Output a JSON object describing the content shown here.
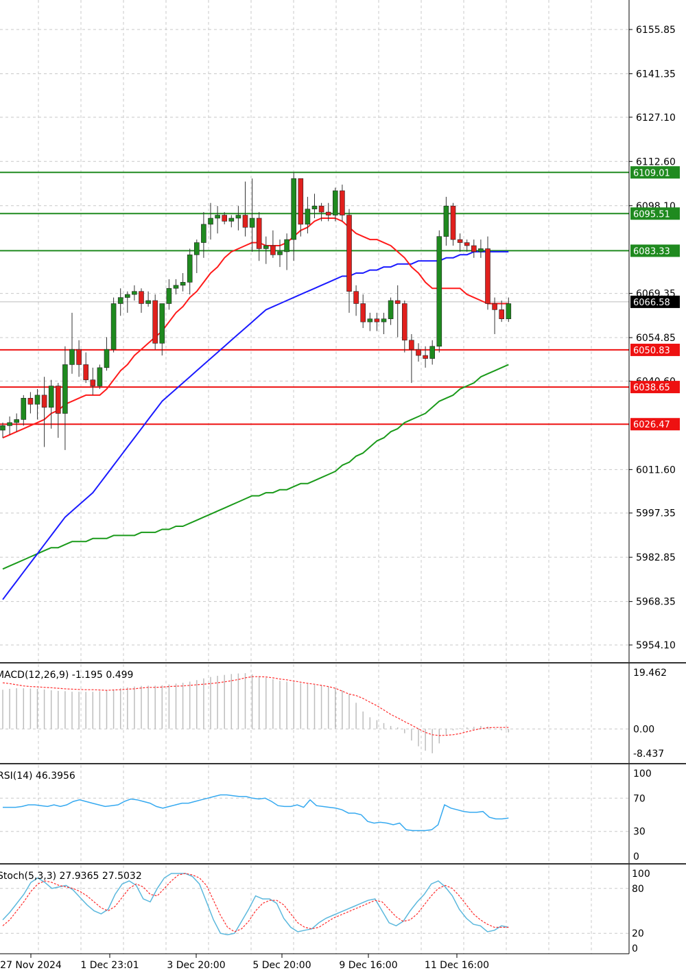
{
  "colors": {
    "bull": "#1f8a1f",
    "bear": "#e0201d",
    "ma_fast": "#ff1a1a",
    "ma_mid": "#1a1aff",
    "ma_slow": "#1a9a1a",
    "support": "#ee1111",
    "resistance": "#1f8a1f",
    "grid": "#c8c8c8",
    "macd_hist": "#bdbdbd",
    "macd_signal": "#ff2a2a",
    "rsi": "#35a9f0",
    "stoch_main": "#5bb8dd",
    "stoch_signal": "#ff2a2a"
  },
  "chart_data": [
    {
      "type": "candlestick",
      "panel": "price",
      "y_ticks": [
        "6155.85",
        "6141.35",
        "6127.10",
        "6112.60",
        "6098.10",
        "6069.35",
        "6054.85",
        "6040.60",
        "6011.60",
        "5997.35",
        "5982.85",
        "5968.35",
        "5954.10"
      ],
      "ylim": [
        5950,
        6168
      ],
      "x_tick_labels": [
        "27 Nov 2024",
        "1 Dec 23:01",
        "3 Dec 20:00",
        "5 Dec 20:00",
        "9 Dec 16:00",
        "11 Dec 16:00"
      ],
      "candles": [
        {
          "o": 6024.5,
          "h": 6027,
          "l": 6022,
          "c": 6026
        },
        {
          "o": 6026,
          "h": 6029,
          "l": 6023,
          "c": 6027
        },
        {
          "o": 6027,
          "h": 6030,
          "l": 6024,
          "c": 6028
        },
        {
          "o": 6028,
          "h": 6036,
          "l": 6026,
          "c": 6035
        },
        {
          "o": 6035,
          "h": 6037,
          "l": 6030,
          "c": 6033
        },
        {
          "o": 6033,
          "h": 6038,
          "l": 6028,
          "c": 6036
        },
        {
          "o": 6036,
          "h": 6042,
          "l": 6019,
          "c": 6032
        },
        {
          "o": 6032,
          "h": 6041,
          "l": 6025,
          "c": 6039
        },
        {
          "o": 6039,
          "h": 6040,
          "l": 6022,
          "c": 6030
        },
        {
          "o": 6030,
          "h": 6052,
          "l": 6018,
          "c": 6046
        },
        {
          "o": 6046,
          "h": 6063,
          "l": 6043,
          "c": 6051
        },
        {
          "o": 6051,
          "h": 6054,
          "l": 6042,
          "c": 6046
        },
        {
          "o": 6046,
          "h": 6050,
          "l": 6040,
          "c": 6041
        },
        {
          "o": 6041,
          "h": 6045,
          "l": 6036,
          "c": 6039
        },
        {
          "o": 6039,
          "h": 6046,
          "l": 6038,
          "c": 6045
        },
        {
          "o": 6045,
          "h": 6055,
          "l": 6044,
          "c": 6051
        },
        {
          "o": 6051,
          "h": 6068,
          "l": 6050,
          "c": 6066
        },
        {
          "o": 6066,
          "h": 6071,
          "l": 6062,
          "c": 6068
        },
        {
          "o": 6068,
          "h": 6070,
          "l": 6063,
          "c": 6069
        },
        {
          "o": 6069,
          "h": 6072,
          "l": 6067,
          "c": 6070
        },
        {
          "o": 6070,
          "h": 6071,
          "l": 6063,
          "c": 6066
        },
        {
          "o": 6066,
          "h": 6070,
          "l": 6065,
          "c": 6067
        },
        {
          "o": 6067,
          "h": 6069,
          "l": 6051,
          "c": 6053
        },
        {
          "o": 6053,
          "h": 6064,
          "l": 6049,
          "c": 6066
        },
        {
          "o": 6066,
          "h": 6074,
          "l": 6064,
          "c": 6071
        },
        {
          "o": 6071,
          "h": 6074,
          "l": 6069,
          "c": 6072
        },
        {
          "o": 6072,
          "h": 6076,
          "l": 6070,
          "c": 6073
        },
        {
          "o": 6073,
          "h": 6084,
          "l": 6069,
          "c": 6082
        },
        {
          "o": 6082,
          "h": 6087,
          "l": 6076,
          "c": 6086
        },
        {
          "o": 6086,
          "h": 6096,
          "l": 6081,
          "c": 6092
        },
        {
          "o": 6092,
          "h": 6099,
          "l": 6087,
          "c": 6094
        },
        {
          "o": 6094,
          "h": 6098,
          "l": 6089,
          "c": 6095
        },
        {
          "o": 6095,
          "h": 6096,
          "l": 6092,
          "c": 6093
        },
        {
          "o": 6093,
          "h": 6095,
          "l": 6091,
          "c": 6094
        },
        {
          "o": 6094,
          "h": 6098,
          "l": 6090,
          "c": 6095
        },
        {
          "o": 6095,
          "h": 6106,
          "l": 6088,
          "c": 6091
        },
        {
          "o": 6091,
          "h": 6107,
          "l": 6083,
          "c": 6094
        },
        {
          "o": 6094,
          "h": 6096,
          "l": 6080,
          "c": 6084
        },
        {
          "o": 6084,
          "h": 6088,
          "l": 6079,
          "c": 6085
        },
        {
          "o": 6085,
          "h": 6090,
          "l": 6081,
          "c": 6082
        },
        {
          "o": 6082,
          "h": 6087,
          "l": 6078,
          "c": 6083
        },
        {
          "o": 6083,
          "h": 6089,
          "l": 6077,
          "c": 6087
        },
        {
          "o": 6087,
          "h": 6109,
          "l": 6080,
          "c": 6107
        },
        {
          "o": 6107,
          "h": 6107,
          "l": 6088,
          "c": 6092
        },
        {
          "o": 6092,
          "h": 6101,
          "l": 6089,
          "c": 6097
        },
        {
          "o": 6097,
          "h": 6102,
          "l": 6094,
          "c": 6098
        },
        {
          "o": 6098,
          "h": 6099,
          "l": 6093,
          "c": 6096
        },
        {
          "o": 6096,
          "h": 6099,
          "l": 6093,
          "c": 6095
        },
        {
          "o": 6095,
          "h": 6104,
          "l": 6093,
          "c": 6103
        },
        {
          "o": 6103,
          "h": 6105,
          "l": 6093,
          "c": 6095
        },
        {
          "o": 6095,
          "h": 6097,
          "l": 6063,
          "c": 6070
        },
        {
          "o": 6070,
          "h": 6072,
          "l": 6062,
          "c": 6066
        },
        {
          "o": 6066,
          "h": 6069,
          "l": 6058,
          "c": 6060
        },
        {
          "o": 6060,
          "h": 6063,
          "l": 6057,
          "c": 6061
        },
        {
          "o": 6061,
          "h": 6063,
          "l": 6057,
          "c": 6060
        },
        {
          "o": 6060,
          "h": 6063,
          "l": 6056,
          "c": 6061
        },
        {
          "o": 6061,
          "h": 6068,
          "l": 6059,
          "c": 6067
        },
        {
          "o": 6067,
          "h": 6072,
          "l": 6055,
          "c": 6066
        },
        {
          "o": 6066,
          "h": 6067,
          "l": 6050,
          "c": 6054
        },
        {
          "o": 6054,
          "h": 6056,
          "l": 6040,
          "c": 6051
        },
        {
          "o": 6051,
          "h": 6053,
          "l": 6047,
          "c": 6049
        },
        {
          "o": 6049,
          "h": 6052,
          "l": 6045,
          "c": 6048
        },
        {
          "o": 6048,
          "h": 6054,
          "l": 6046,
          "c": 6052
        },
        {
          "o": 6052,
          "h": 6090,
          "l": 6050,
          "c": 6088
        },
        {
          "o": 6088,
          "h": 6101,
          "l": 6085,
          "c": 6098
        },
        {
          "o": 6098,
          "h": 6099,
          "l": 6085,
          "c": 6087
        },
        {
          "o": 6087,
          "h": 6089,
          "l": 6083,
          "c": 6086
        },
        {
          "o": 6086,
          "h": 6087,
          "l": 6083,
          "c": 6085
        },
        {
          "o": 6085,
          "h": 6087,
          "l": 6081,
          "c": 6083
        },
        {
          "o": 6083,
          "h": 6087,
          "l": 6081,
          "c": 6084
        },
        {
          "o": 6084,
          "h": 6088,
          "l": 6064,
          "c": 6066
        },
        {
          "o": 6066,
          "h": 6068,
          "l": 6056,
          "c": 6064
        },
        {
          "o": 6064,
          "h": 6067,
          "l": 6060,
          "c": 6061
        },
        {
          "o": 6061,
          "h": 6068,
          "l": 6060,
          "c": 6066
        }
      ],
      "ma_fast": [
        6022,
        6023,
        6024,
        6025,
        6026,
        6027,
        6028,
        6030,
        6031,
        6033,
        6034,
        6035,
        6036,
        6036,
        6036,
        6038,
        6041,
        6044,
        6046,
        6049,
        6051,
        6053,
        6055,
        6057,
        6060,
        6063,
        6065,
        6068,
        6070,
        6073,
        6076,
        6078,
        6081,
        6083,
        6084,
        6085,
        6086,
        6086,
        6085,
        6085,
        6085,
        6086,
        6088,
        6090,
        6091,
        6093,
        6094,
        6094,
        6094,
        6093,
        6091,
        6089,
        6088,
        6087,
        6087,
        6086,
        6085,
        6083,
        6081,
        6078,
        6076,
        6073,
        6071,
        6071,
        6071,
        6071,
        6071,
        6069,
        6068,
        6067,
        6066,
        6066,
        6066,
        6066
      ],
      "ma_mid": [
        5969,
        5972,
        5975,
        5978,
        5981,
        5984,
        5987,
        5990,
        5993,
        5996,
        5998,
        6000,
        6002,
        6004,
        6007,
        6010,
        6013,
        6016,
        6019,
        6022,
        6025,
        6028,
        6031,
        6034,
        6036,
        6038,
        6040,
        6042,
        6044,
        6046,
        6048,
        6050,
        6052,
        6054,
        6056,
        6058,
        6060,
        6062,
        6064,
        6065,
        6066,
        6067,
        6068,
        6069,
        6070,
        6071,
        6072,
        6073,
        6074,
        6075,
        6075,
        6076,
        6076,
        6077,
        6077,
        6078,
        6078,
        6079,
        6079,
        6079,
        6080,
        6080,
        6080,
        6080,
        6081,
        6081,
        6082,
        6082,
        6083,
        6083,
        6083,
        6083,
        6083,
        6083
      ],
      "ma_slow": [
        5979,
        5980,
        5981,
        5982,
        5983,
        5984,
        5985,
        5986,
        5986,
        5987,
        5988,
        5988,
        5988,
        5989,
        5989,
        5989,
        5990,
        5990,
        5990,
        5990,
        5991,
        5991,
        5991,
        5992,
        5992,
        5993,
        5993,
        5994,
        5995,
        5996,
        5997,
        5998,
        5999,
        6000,
        6001,
        6002,
        6003,
        6003,
        6004,
        6004,
        6005,
        6005,
        6006,
        6007,
        6007,
        6008,
        6009,
        6010,
        6011,
        6013,
        6014,
        6016,
        6017,
        6019,
        6021,
        6022,
        6024,
        6025,
        6027,
        6028,
        6029,
        6030,
        6032,
        6034,
        6035,
        6036,
        6038,
        6039,
        6040,
        6042,
        6043,
        6044,
        6045,
        6046
      ],
      "resistance_levels": [
        {
          "value": 6109.01,
          "label": "6109.01"
        },
        {
          "value": 6095.51,
          "label": "6095.51"
        },
        {
          "value": 6083.33,
          "label": "6083.33"
        }
      ],
      "support_levels": [
        {
          "value": 6050.83,
          "label": "6050.83"
        },
        {
          "value": 6038.65,
          "label": "6038.65"
        },
        {
          "value": 6026.47,
          "label": "6026.47"
        }
      ],
      "current_price": {
        "value": 6066.58,
        "label": "6066.58"
      }
    },
    {
      "type": "bar",
      "panel": "macd",
      "label": "MACD(12,26,9) -1.195 0.499",
      "y_ticks": [
        "19.462",
        "0.00",
        "-8.437"
      ],
      "ylim": [
        -8.437,
        19.462
      ],
      "histogram": [
        13.5,
        13.8,
        14,
        14,
        13.9,
        13.8,
        13.6,
        13.3,
        13.1,
        13,
        12.8,
        12.8,
        12.8,
        12.8,
        13,
        13.2,
        13.6,
        14,
        14.3,
        14.6,
        14.8,
        14.9,
        14.9,
        15,
        15.3,
        15.6,
        15.9,
        16.3,
        16.8,
        17.4,
        17.9,
        18.3,
        18.6,
        18.9,
        19.1,
        19.2,
        18.8,
        18.2,
        17.6,
        17.1,
        16.6,
        16.3,
        16.1,
        15.8,
        15.5,
        15.2,
        14.9,
        14.5,
        14,
        13.3,
        12,
        9,
        6,
        4,
        3,
        2,
        1,
        0.5,
        -1.5,
        -4,
        -6,
        -7.5,
        -8.4,
        -5,
        -2,
        -0.5,
        0.3,
        0.5,
        0.7,
        1,
        0.8,
        0,
        -0.5,
        -1.2
      ],
      "signal": [
        15.9,
        15.6,
        15.2,
        14.8,
        14.6,
        14.5,
        14.3,
        14.2,
        14,
        13.8,
        13.7,
        13.6,
        13.5,
        13.5,
        13.4,
        13.3,
        13.4,
        13.5,
        13.7,
        13.8,
        14.1,
        14.3,
        14.3,
        14.4,
        14.6,
        14.7,
        14.8,
        15,
        15.2,
        15.4,
        15.6,
        15.9,
        16.2,
        16.6,
        17,
        17.6,
        18,
        18,
        17.9,
        17.6,
        17.2,
        16.9,
        16.5,
        16.1,
        15.7,
        15.4,
        15,
        14.6,
        14,
        13,
        12,
        11.5,
        10.5,
        9.2,
        8,
        6.5,
        5,
        3.8,
        2.5,
        1.3,
        0,
        -1.2,
        -2,
        -2.3,
        -2.2,
        -2,
        -1.6,
        -1,
        -0.4,
        0.1,
        0.4,
        0.5,
        0.5,
        0.5
      ]
    },
    {
      "type": "line",
      "panel": "rsi",
      "label": "RSI(14) 46.3956",
      "y_ticks": [
        "100",
        "70",
        "30",
        "0"
      ],
      "ylim": [
        0,
        100
      ],
      "values": [
        59,
        59,
        59,
        60,
        62,
        62,
        61,
        60,
        62,
        60,
        62,
        66,
        68,
        66,
        64,
        62,
        60,
        61,
        62,
        66,
        69,
        68,
        66,
        64,
        60,
        58,
        60,
        62,
        64,
        64,
        66,
        68,
        70,
        72,
        74,
        74,
        73,
        72,
        72,
        70,
        69,
        70,
        66,
        61,
        60,
        60,
        62,
        59,
        68,
        61,
        60,
        59,
        58,
        56,
        52,
        52,
        50,
        42,
        40,
        41,
        40,
        38,
        40,
        32,
        31,
        31,
        31,
        32,
        38,
        62,
        58,
        56,
        54,
        53,
        53,
        54,
        47,
        45,
        45,
        46
      ],
      "values_note": ""
    },
    {
      "type": "line",
      "panel": "stoch",
      "label": "Stoch(5,3,3) 27.9365 27.5032",
      "y_ticks": [
        "100",
        "80",
        "20",
        "0"
      ],
      "ylim": [
        0,
        100
      ],
      "main": [
        38,
        48,
        60,
        72,
        88,
        94,
        88,
        80,
        82,
        84,
        78,
        68,
        58,
        50,
        46,
        52,
        72,
        86,
        90,
        84,
        66,
        62,
        80,
        94,
        100,
        100,
        100,
        96,
        86,
        62,
        38,
        20,
        18,
        20,
        36,
        52,
        70,
        66,
        66,
        60,
        40,
        28,
        22,
        24,
        26,
        34,
        40,
        44,
        48,
        52,
        56,
        60,
        64,
        66,
        50,
        34,
        30,
        36,
        50,
        62,
        72,
        86,
        90,
        82,
        70,
        52,
        40,
        32,
        30,
        22,
        24,
        30,
        28
      ],
      "signal": [
        30,
        38,
        50,
        62,
        76,
        86,
        90,
        88,
        84,
        82,
        80,
        76,
        70,
        62,
        54,
        50,
        56,
        68,
        80,
        86,
        82,
        72,
        70,
        80,
        90,
        98,
        100,
        98,
        94,
        84,
        64,
        44,
        28,
        22,
        26,
        36,
        50,
        60,
        64,
        64,
        58,
        46,
        34,
        28,
        26,
        28,
        34,
        40,
        44,
        48,
        52,
        56,
        60,
        64,
        62,
        52,
        42,
        36,
        38,
        46,
        58,
        70,
        80,
        84,
        80,
        70,
        58,
        46,
        38,
        32,
        28,
        28,
        28
      ]
    }
  ]
}
